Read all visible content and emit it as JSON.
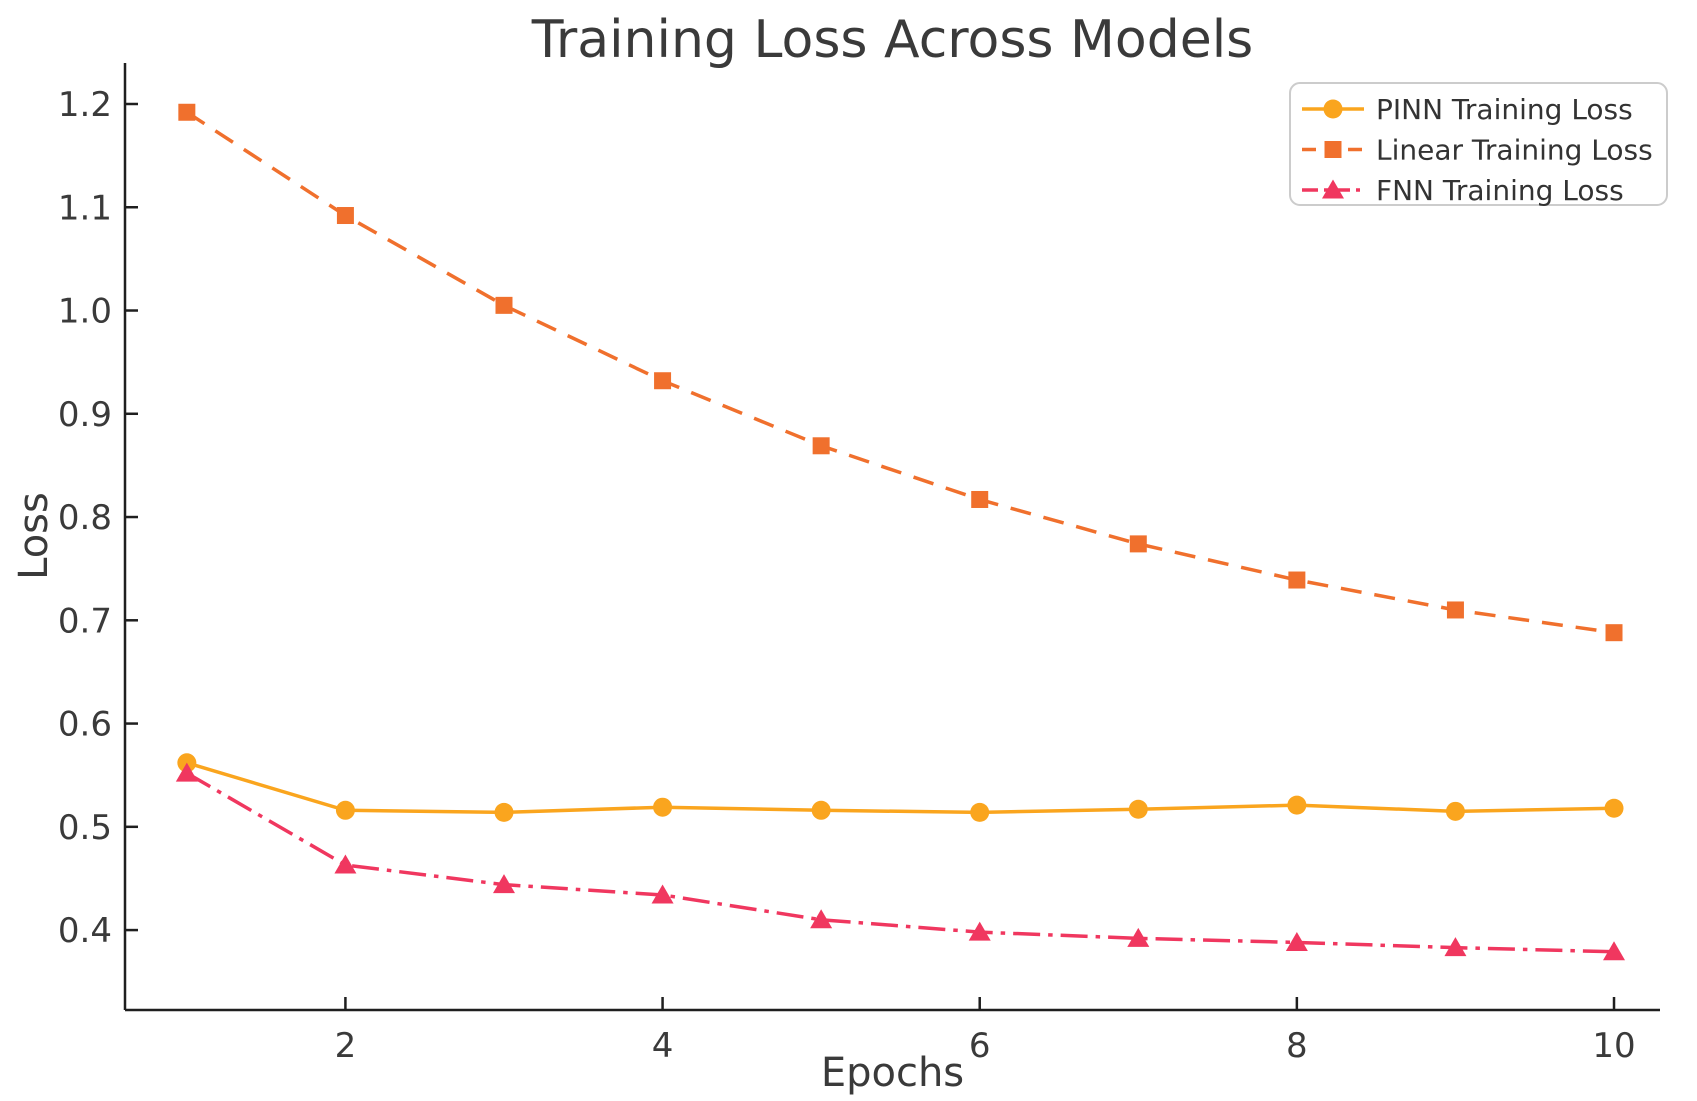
{
  "figure": {
    "background": "#ffffff",
    "text_color": "#3a3a3a",
    "axis_color": "#1f1f1f",
    "legend_border_color": "#cccccc"
  },
  "chart_data": {
    "type": "line",
    "title": "Training Loss Across Models",
    "xlabel": "Epochs",
    "ylabel": "Loss",
    "x": [
      1,
      2,
      3,
      4,
      5,
      6,
      7,
      8,
      9,
      10
    ],
    "series": [
      {
        "name": "PINN Training Loss",
        "color": "#FAA51E",
        "line_style": "solid",
        "marker": "circle",
        "values": [
          0.562,
          0.516,
          0.514,
          0.519,
          0.516,
          0.514,
          0.517,
          0.521,
          0.515,
          0.518
        ]
      },
      {
        "name": "Linear Training Loss",
        "color": "#F0702D",
        "line_style": "dashed",
        "marker": "square",
        "values": [
          1.192,
          1.092,
          1.005,
          0.932,
          0.869,
          0.817,
          0.774,
          0.739,
          0.71,
          0.688
        ]
      },
      {
        "name": "FNN Training Loss",
        "color": "#F0375F",
        "line_style": "dashdot",
        "marker": "triangle",
        "values": [
          0.552,
          0.463,
          0.444,
          0.434,
          0.41,
          0.398,
          0.392,
          0.388,
          0.383,
          0.379
        ]
      }
    ],
    "x_ticks": [
      2,
      4,
      6,
      8,
      10
    ],
    "y_ticks": [
      0.4,
      0.5,
      0.6,
      0.7,
      0.8,
      0.9,
      1.0,
      1.1,
      1.2
    ],
    "xlim": [
      0.61,
      10.29
    ],
    "ylim": [
      0.3226,
      1.2397
    ],
    "grid": false,
    "legend_position": "upper right"
  }
}
